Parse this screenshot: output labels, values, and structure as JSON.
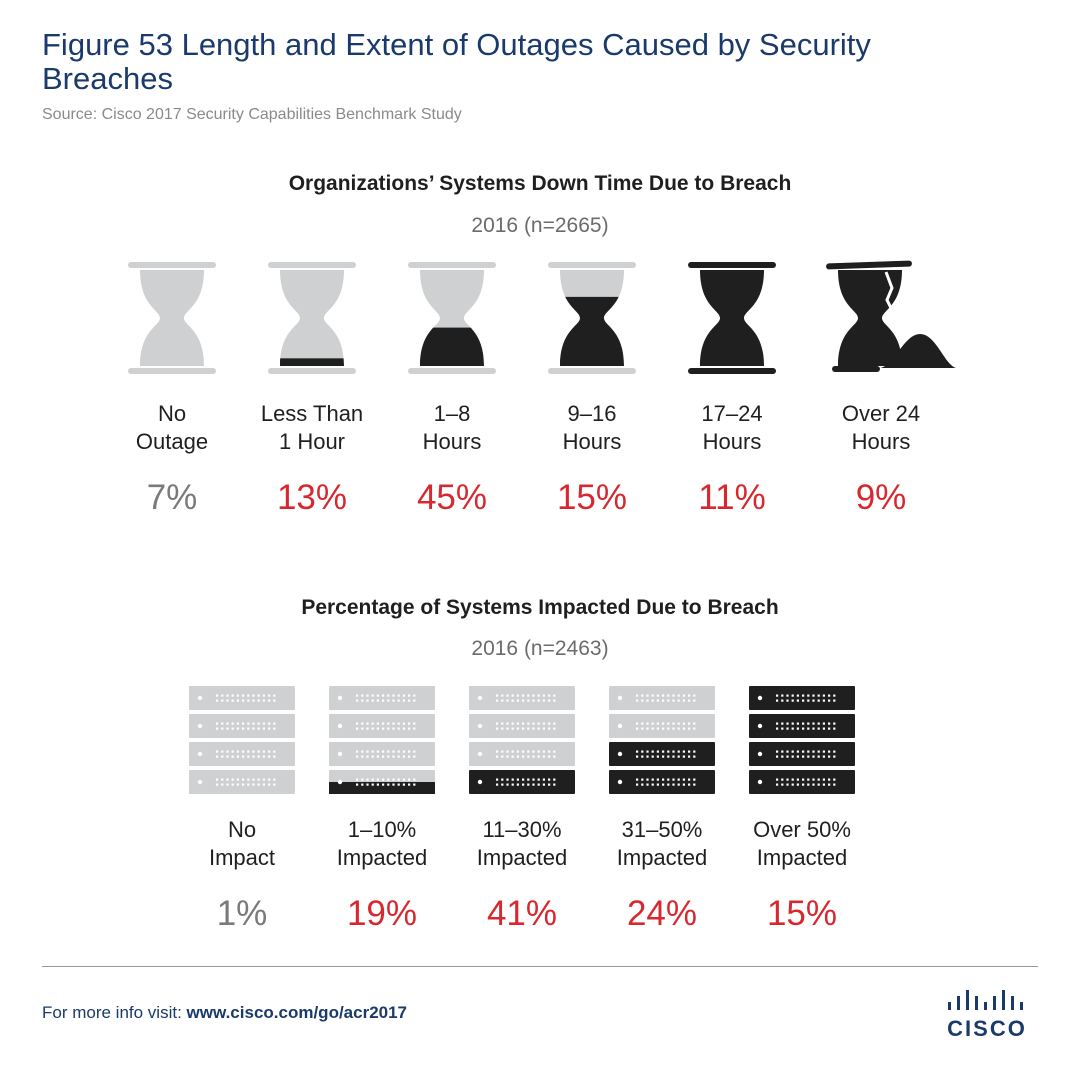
{
  "figure": {
    "title": "Figure 53  Length and Extent of Outages Caused by Security Breaches",
    "source": "Source: Cisco 2017 Security Capabilities Benchmark Study"
  },
  "colors": {
    "dark": "#1f1f1f",
    "light": "#cfd0d1",
    "red": "#d7282f",
    "gray": "#7a7a7a",
    "navy": "#1a3a6b"
  },
  "chart_data": [
    {
      "type": "table",
      "title": "Organizations’ Systems Down Time Due to Breach",
      "subtitle": "2016 (n=2665)",
      "icon": "hourglass-icon",
      "categories": [
        [
          "No",
          "Outage"
        ],
        [
          "Less Than",
          "1 Hour"
        ],
        [
          "1–8",
          "Hours"
        ],
        [
          "9–16",
          "Hours"
        ],
        [
          "17–24",
          "Hours"
        ],
        [
          "Over 24",
          "Hours"
        ]
      ],
      "values": [
        "7%",
        "13%",
        "45%",
        "15%",
        "11%",
        "9%"
      ],
      "fill_levels": [
        0,
        0.08,
        0.4,
        0.72,
        1,
        1
      ]
    },
    {
      "type": "table",
      "title": "Percentage of Systems Impacted Due to Breach",
      "subtitle": "2016 (n=2463)",
      "icon": "server-stack-icon",
      "categories": [
        [
          "No",
          "Impact"
        ],
        [
          "1–10%",
          "Impacted"
        ],
        [
          "11–30%",
          "Impacted"
        ],
        [
          "31–50%",
          "Impacted"
        ],
        [
          "Over 50%",
          "Impacted"
        ]
      ],
      "values": [
        "1%",
        "19%",
        "41%",
        "24%",
        "15%"
      ],
      "dark_units": [
        0,
        0.5,
        1,
        2,
        4
      ]
    }
  ],
  "footer": {
    "label": "For more info visit:",
    "url": "www.cisco.com/go/acr2017"
  },
  "logo": {
    "text": "CISCO"
  }
}
